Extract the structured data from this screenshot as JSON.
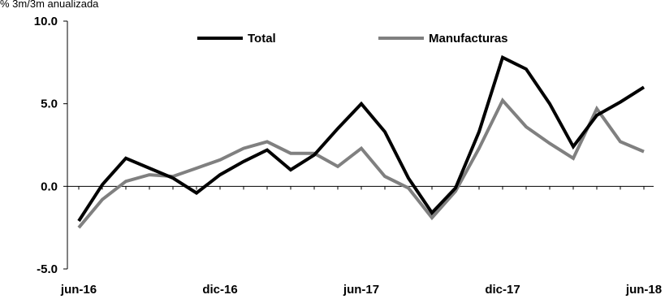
{
  "chart_data": {
    "type": "line",
    "title": "",
    "ylabel": "% 3m/3m anualizada",
    "xlabel": "",
    "ylim": [
      -5.0,
      10.0
    ],
    "yticks": [
      "-5.0",
      "0.0",
      "5.0",
      "10.0"
    ],
    "ytick_values": [
      -5,
      0,
      5,
      10
    ],
    "x": [
      "jun-16",
      "jul-16",
      "ago-16",
      "sep-16",
      "oct-16",
      "nov-16",
      "dic-16",
      "ene-17",
      "feb-17",
      "mar-17",
      "abr-17",
      "may-17",
      "jun-17",
      "jul-17",
      "ago-17",
      "sep-17",
      "oct-17",
      "nov-17",
      "dic-17",
      "ene-18",
      "feb-18",
      "mar-18",
      "abr-18",
      "may-18",
      "jun-18"
    ],
    "xtick_labels": [
      {
        "index": 0,
        "label": "jun-16"
      },
      {
        "index": 6,
        "label": "dic-16"
      },
      {
        "index": 12,
        "label": "jun-17"
      },
      {
        "index": 18,
        "label": "dic-17"
      },
      {
        "index": 24,
        "label": "jun-18"
      }
    ],
    "grid": false,
    "legend_position": "top",
    "series": [
      {
        "name": "Total",
        "color": "#000000",
        "values": [
          -2.1,
          0.1,
          1.7,
          1.1,
          0.5,
          -0.4,
          0.7,
          1.5,
          2.2,
          1.0,
          1.9,
          3.5,
          5.0,
          3.3,
          0.5,
          -1.6,
          -0.1,
          3.3,
          7.8,
          7.1,
          5.0,
          2.4,
          4.3,
          5.1,
          6.0
        ]
      },
      {
        "name": "Manufacturas",
        "color": "#808080",
        "values": [
          -2.5,
          -0.8,
          0.3,
          0.7,
          0.6,
          1.1,
          1.6,
          2.3,
          2.7,
          2.0,
          2.0,
          1.2,
          2.3,
          0.6,
          -0.1,
          -1.9,
          -0.3,
          2.3,
          5.2,
          3.6,
          2.6,
          1.7,
          4.7,
          2.7,
          2.1
        ]
      }
    ]
  }
}
